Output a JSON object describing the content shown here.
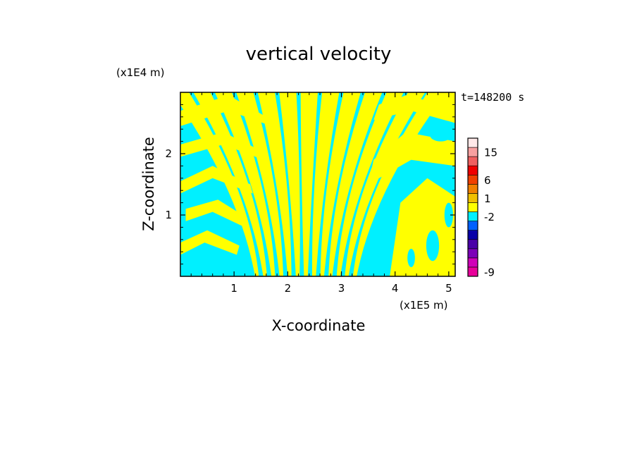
{
  "chart_data": {
    "type": "heatmap",
    "title": "vertical velocity",
    "xlabel": "X-coordinate",
    "ylabel": "Z-coordinate",
    "x_unit": "(x1E5 m)",
    "y_unit": "(x1E4 m)",
    "time_label": "t=148200 s",
    "xlim": [
      0,
      5.12
    ],
    "ylim": [
      0,
      3.0
    ],
    "x_ticks": [
      1,
      2,
      3,
      4,
      5
    ],
    "y_ticks": [
      1,
      2
    ],
    "x_tick_labels": [
      "1",
      "2",
      "3",
      "4",
      "5"
    ],
    "y_tick_labels": [
      "1",
      "2"
    ],
    "field_description": "alternating updraft/downdraft bands, small magnitude (between -2 and 1) over the whole domain",
    "visible_levels": [
      {
        "name": "weak-positive",
        "color": "#FFFF00"
      },
      {
        "name": "weak-negative",
        "color": "#00F0FF"
      }
    ],
    "colorbar": {
      "levels": [
        {
          "value": "-9",
          "color": "#E8009A"
        },
        {
          "value": "",
          "color": "#D000B8"
        },
        {
          "value": "",
          "color": "#7C00B8"
        },
        {
          "value": "",
          "color": "#4A00A8"
        },
        {
          "value": "",
          "color": "#0800A8"
        },
        {
          "value": "",
          "color": "#0060FF"
        },
        {
          "value": "-2",
          "color": "#00F0FF"
        },
        {
          "value": "",
          "color": "#FFFF00"
        },
        {
          "value": "1",
          "color": "#F0C000"
        },
        {
          "value": "",
          "color": "#F08000"
        },
        {
          "value": "6",
          "color": "#F04000"
        },
        {
          "value": "",
          "color": "#F00000"
        },
        {
          "value": "",
          "color": "#F06060"
        },
        {
          "value": "15",
          "color": "#F8A0A0"
        },
        {
          "value": "",
          "color": "#FFE8E8"
        }
      ],
      "tick_labels": [
        "15",
        "6",
        "1",
        "-2",
        "-9"
      ]
    }
  }
}
